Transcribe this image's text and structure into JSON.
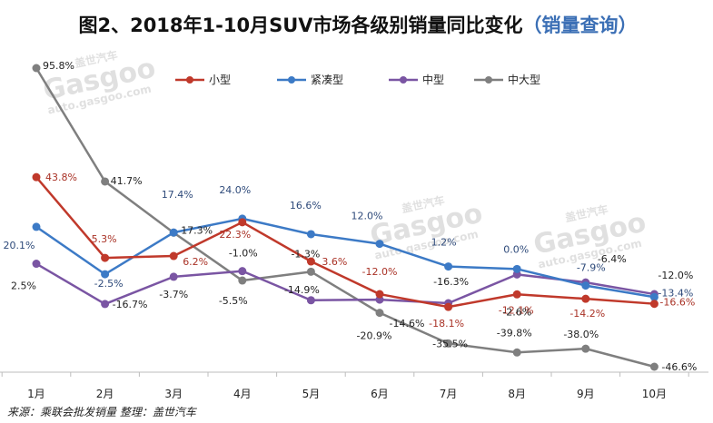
{
  "chart_data": {
    "type": "line",
    "title": "图2、2018年1-10月SUV市场各级别销量同比变化",
    "subtitle": "（销量查询）",
    "categories": [
      "1月",
      "2月",
      "3月",
      "4月",
      "5月",
      "6月",
      "7月",
      "8月",
      "9月",
      "10月"
    ],
    "ylim": [
      -55,
      100
    ],
    "grid": false,
    "legend_position": "top",
    "series": [
      {
        "name": "小型",
        "color": "#c0392b",
        "values": [
          43.8,
          5.3,
          6.2,
          22.3,
          3.6,
          -12.0,
          -18.1,
          -12.1,
          -14.2,
          -16.6
        ],
        "labels": [
          "43.8%",
          "5.3%",
          "6.2%",
          "22.3%",
          "3.6%",
          "-12.0%",
          "-18.1%",
          "-12.1%",
          "-14.2%",
          "-16.6%"
        ]
      },
      {
        "name": "紧凑型",
        "color": "#3c7ac6",
        "values": [
          20.1,
          -2.5,
          17.4,
          24.0,
          16.6,
          12.0,
          1.2,
          0.0,
          -7.9,
          -13.4
        ],
        "labels": [
          "20.1%",
          "-2.5%",
          "17.4%",
          "24.0%",
          "16.6%",
          "12.0%",
          "1.2%",
          "0.0%",
          "-7.9%",
          "-13.4%"
        ]
      },
      {
        "name": "中型",
        "color": "#7a55a3",
        "values": [
          2.5,
          -16.7,
          -3.7,
          -1.0,
          -14.9,
          -14.6,
          -16.3,
          -2.6,
          -6.4,
          -12.0
        ],
        "labels": [
          "2.5%",
          "-16.7%",
          "-3.7%",
          "-1.0%",
          "-14.9%",
          "-14.6%",
          "-16.3%",
          "-2.6%",
          "-6.4%",
          "-12.0%"
        ]
      },
      {
        "name": "中大型",
        "color": "#7f7f7f",
        "values": [
          95.8,
          41.7,
          17.3,
          -5.5,
          -1.3,
          -20.9,
          -35.5,
          -39.8,
          -38.0,
          -46.6
        ],
        "labels": [
          "95.8%",
          "41.7%",
          "17.3%",
          "-5.5%",
          "-1.3%",
          "-20.9%",
          "-35.5%",
          "-39.8%",
          "-38.0%",
          "-46.6%"
        ]
      }
    ]
  },
  "footer": {
    "source": "来源：乘联会批发销量   整理：盖世汽车"
  },
  "watermark": {
    "brand": "Gasgoo",
    "cn": "盖世汽车",
    "url": "auto.gasgoo.com"
  }
}
